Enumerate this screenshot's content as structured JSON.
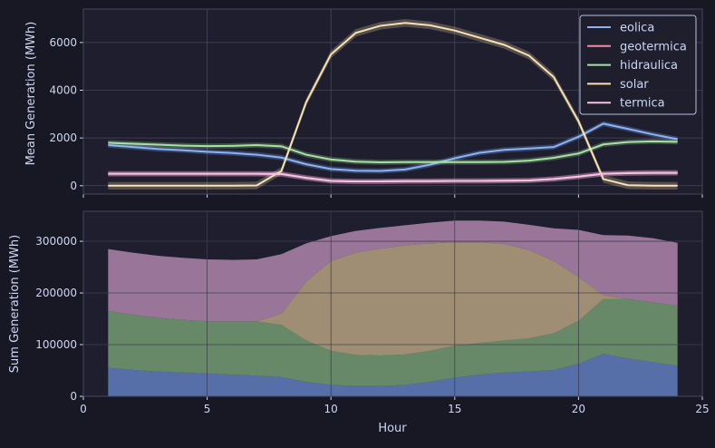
{
  "colors": {
    "background": "#181825",
    "plot_bg": "#1e1e2e",
    "grid": "#45475a",
    "text": "#cdd6f4",
    "eolica": "#89b4fa",
    "geotermica": "#f38ba8",
    "hidraulica": "#a6e3a1",
    "solar": "#f9e2af",
    "termica": "#f5c2e7"
  },
  "chart_data": [
    {
      "type": "line",
      "ylabel": "Mean Generation (MWh)",
      "xlabel": "",
      "xlim": [
        0,
        25
      ],
      "ylim": [
        -350,
        7400
      ],
      "yticks": [
        0,
        2000,
        4000,
        6000
      ],
      "xticks": [
        0,
        5,
        10,
        15,
        20,
        25
      ],
      "grid": true,
      "legend_position": "top-right",
      "x": [
        1,
        2,
        3,
        4,
        5,
        6,
        7,
        8,
        9,
        10,
        11,
        12,
        13,
        14,
        15,
        16,
        17,
        18,
        19,
        20,
        21,
        22,
        23,
        24
      ],
      "series": [
        {
          "name": "eolica",
          "values": [
            1700,
            1620,
            1540,
            1490,
            1420,
            1370,
            1300,
            1180,
            900,
            700,
            630,
            620,
            680,
            880,
            1150,
            1380,
            1500,
            1560,
            1620,
            2050,
            2600,
            2380,
            2150,
            1950
          ]
        },
        {
          "name": "geotermica",
          "values": [
            500,
            500,
            500,
            500,
            500,
            500,
            500,
            490,
            330,
            200,
            180,
            180,
            190,
            190,
            200,
            200,
            210,
            220,
            280,
            380,
            500,
            530,
            540,
            540
          ]
        },
        {
          "name": "hidraulica",
          "values": [
            1800,
            1760,
            1720,
            1680,
            1660,
            1670,
            1700,
            1650,
            1300,
            1100,
            1010,
            980,
            990,
            990,
            990,
            990,
            1000,
            1050,
            1170,
            1350,
            1730,
            1830,
            1860,
            1840
          ]
        },
        {
          "name": "solar",
          "values": [
            0,
            0,
            0,
            0,
            0,
            0,
            10,
            620,
            3500,
            5500,
            6400,
            6700,
            6820,
            6720,
            6500,
            6200,
            5900,
            5450,
            4550,
            2700,
            280,
            20,
            0,
            0
          ]
        },
        {
          "name": "termica",
          "values": [
            500,
            500,
            500,
            500,
            500,
            500,
            500,
            490,
            330,
            200,
            180,
            180,
            190,
            190,
            200,
            200,
            210,
            220,
            280,
            380,
            500,
            530,
            540,
            540
          ]
        }
      ]
    },
    {
      "type": "area",
      "ylabel": "Sum Generation (MWh)",
      "xlabel": "Hour",
      "xlim": [
        0,
        25
      ],
      "ylim": [
        0,
        358000
      ],
      "yticks": [
        0,
        100000,
        200000,
        300000
      ],
      "xticks": [
        0,
        5,
        10,
        15,
        20,
        25
      ],
      "grid": true,
      "x": [
        1,
        2,
        3,
        4,
        5,
        6,
        7,
        8,
        9,
        10,
        11,
        12,
        13,
        14,
        15,
        16,
        17,
        18,
        19,
        20,
        21,
        22,
        23,
        24
      ],
      "cumulative": [
        {
          "name": "eolica",
          "values": [
            55000,
            51000,
            48000,
            46000,
            44000,
            42000,
            40000,
            37000,
            28000,
            22000,
            20000,
            20000,
            22000,
            28000,
            36000,
            42000,
            46000,
            48000,
            51000,
            63000,
            82000,
            73000,
            66000,
            59000
          ]
        },
        {
          "name": "hidraulica",
          "values": [
            165000,
            158000,
            152000,
            148000,
            145000,
            145000,
            145000,
            138000,
            108000,
            88000,
            80000,
            79000,
            81000,
            88000,
            98000,
            103000,
            108000,
            112000,
            122000,
            146000,
            188000,
            188000,
            182000,
            175000
          ]
        },
        {
          "name": "solar",
          "values": [
            165000,
            158000,
            152000,
            148000,
            145000,
            145000,
            145000,
            160000,
            222000,
            262000,
            278000,
            286000,
            292000,
            296000,
            298000,
            298000,
            295000,
            283000,
            262000,
            231000,
            196000,
            188000,
            182000,
            175000
          ]
        },
        {
          "name": "termica",
          "values": [
            285000,
            278000,
            272000,
            268000,
            265000,
            264000,
            265000,
            275000,
            296000,
            310000,
            320000,
            326000,
            331000,
            336000,
            340000,
            340000,
            338000,
            332000,
            325000,
            322000,
            312000,
            311000,
            306000,
            297000
          ]
        }
      ]
    }
  ]
}
